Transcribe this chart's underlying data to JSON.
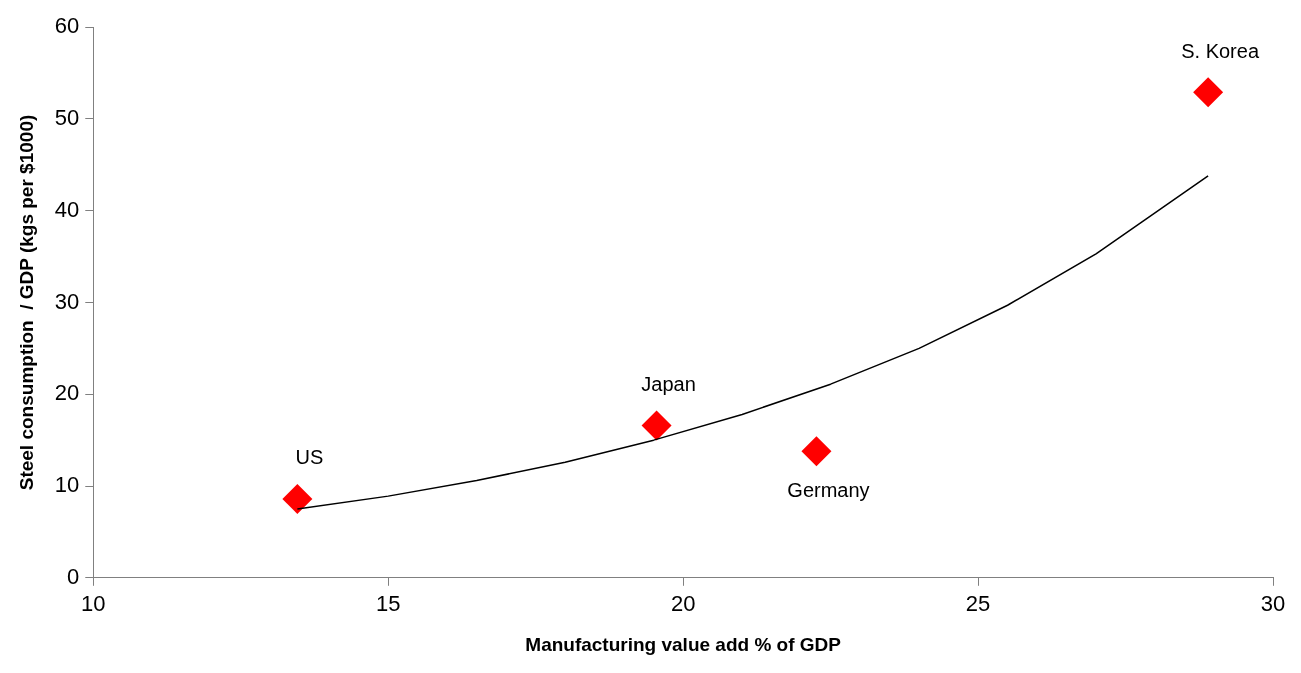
{
  "chart_data": {
    "type": "scatter",
    "xlabel": "Manufacturing value add % of GDP",
    "ylabel": "Steel consumption  / GDP (kgs per $1000)",
    "xlim": [
      10,
      30
    ],
    "xticks": [
      10,
      15,
      20,
      25,
      30
    ],
    "ylim": [
      0,
      60
    ],
    "yticks": [
      0,
      10,
      20,
      30,
      40,
      50,
      60
    ],
    "grid": false,
    "legend": false,
    "marker": "diamond",
    "series": [
      {
        "type": "scatter",
        "color": "#ff0000",
        "x": [
          13.46,
          19.55,
          22.26,
          28.9
        ],
        "values": [
          8.6,
          16.6,
          13.8,
          52.9
        ]
      },
      {
        "type": "line",
        "color": "#000000",
        "marker": "none",
        "x": [
          13.46,
          15,
          16.5,
          18,
          19.5,
          21,
          22.5,
          24,
          25.5,
          27,
          28.9
        ],
        "values": [
          7.5,
          8.9,
          10.6,
          12.6,
          15.0,
          17.8,
          21.1,
          25.0,
          29.7,
          35.3,
          43.8
        ]
      }
    ],
    "annotations": [
      {
        "text": "US",
        "x": 13.46,
        "y": 8.6
      },
      {
        "text": "Japan",
        "x": 19.55,
        "y": 16.6
      },
      {
        "text": "Germany",
        "x": 22.26,
        "y": 13.8
      },
      {
        "text": "S. Korea",
        "x": 28.9,
        "y": 52.9
      }
    ]
  }
}
